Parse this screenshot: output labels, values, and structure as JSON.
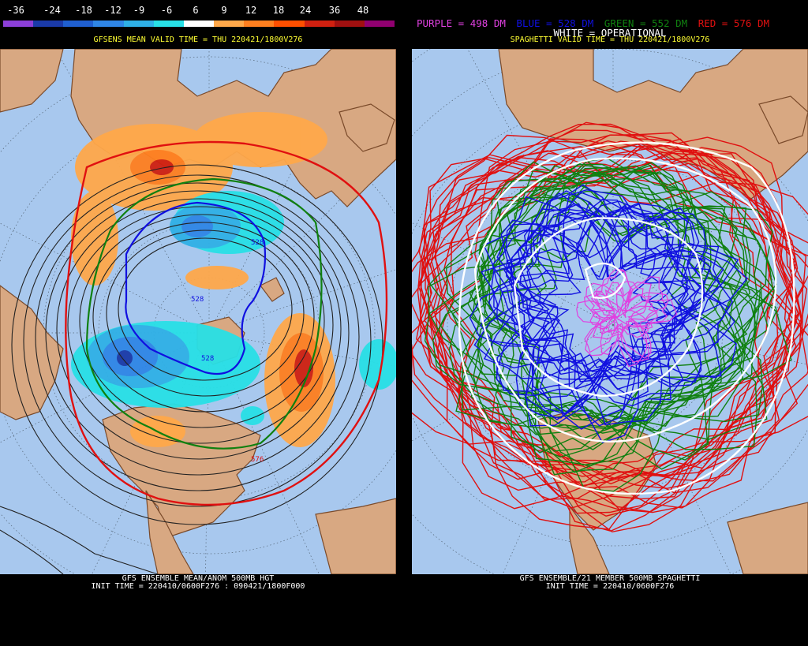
{
  "left_panel": {
    "legend": {
      "labels": [
        "-36",
        "-24",
        "-18",
        "-12",
        "-9",
        "-6",
        "6",
        "9",
        "12",
        "18",
        "24",
        "36",
        "48"
      ],
      "colors": [
        "#8c3fd8",
        "#1a3aa8",
        "#1f5fd0",
        "#2f86e6",
        "#2fb0e6",
        "#28e0e6",
        "#ffffff",
        "#ffa84a",
        "#ff7f1f",
        "#ff4f00",
        "#d02010",
        "#a01010",
        "#900070"
      ]
    },
    "title": "GFSENS MEAN VALID TIME = THU 220421/1800V276",
    "contour_labels": [
      "528",
      "528",
      "528",
      "576"
    ],
    "footer_line1": "GFS ENSEMBLE MEAN/ANOM 500MB HGT",
    "footer_line2": "INIT TIME = 220410/0600F276 : 090421/1800F000"
  },
  "right_panel": {
    "legend": {
      "purple": "PURPLE = 498 DM",
      "blue": "BLUE = 528 DM",
      "green": "GREEN = 552 DM",
      "red": "RED = 576 DM",
      "white": "WHITE = OPERATIONAL"
    },
    "title": "SPAGHETTI VALID TIME = THU 220421/1800V276",
    "footer_line1": "GFS ENSEMBLE/21 MEMBER 500MB SPAGHETTI",
    "footer_line2": "INIT TIME = 220410/0600F276"
  },
  "colors": {
    "ocean": "#a8c8ee",
    "land": "#d8a882",
    "coast": "#7a4a2a",
    "purple": "#e040e0",
    "blue": "#1010e0",
    "green": "#108010",
    "red": "#e01010",
    "white": "#ffffff",
    "title_yellow": "#ffff33"
  }
}
